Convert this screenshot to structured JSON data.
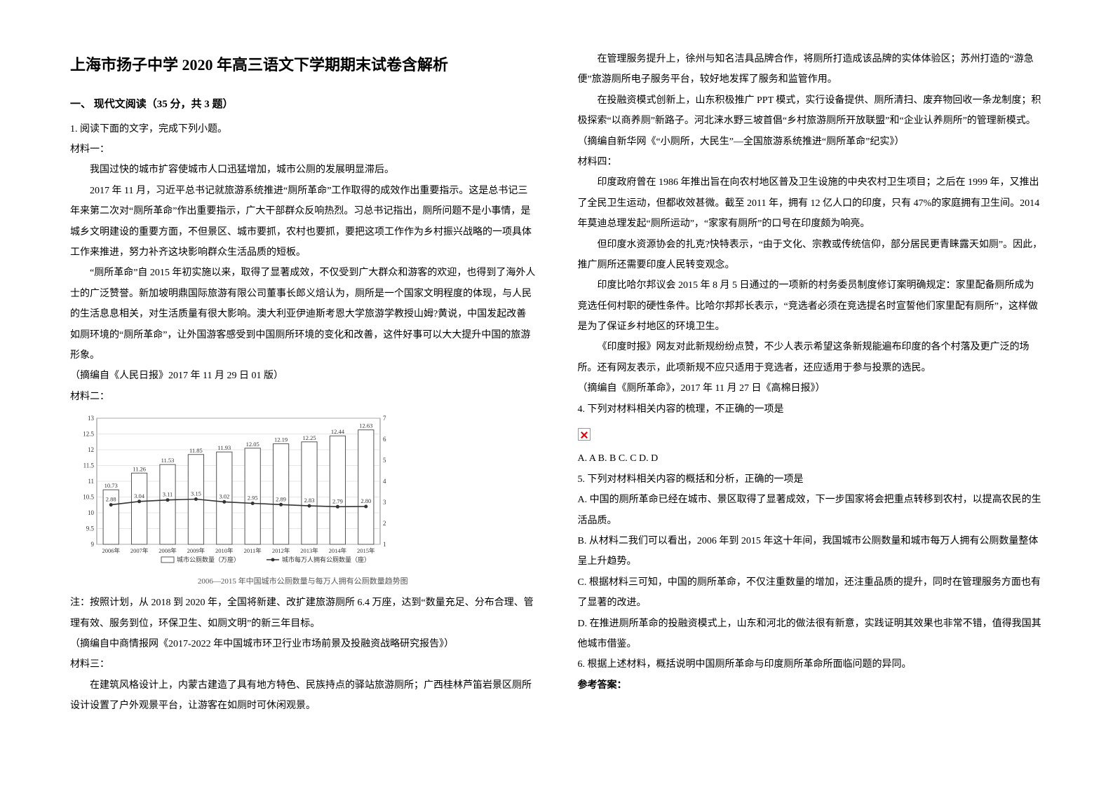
{
  "title": "上海市扬子中学 2020 年高三语文下学期期末试卷含解析",
  "section1": "一、 现代文阅读（35 分，共 3 题）",
  "q1_stem": "1. 阅读下面的文字，完成下列小题。",
  "mat1_label": "材料一：",
  "mat1_p1": "我国过快的城市扩容使城市人口迅猛增加，城市公厕的发展明显滞后。",
  "mat1_p2": "2017 年 11 月，习近平总书记就旅游系统推进“厕所革命”工作取得的成效作出重要指示。这是总书记三年来第二次对“厕所革命”作出重要指示，广大干部群众反响热烈。习总书记指出，厕所问题不是小事情，是城乡文明建设的重要方面，不但景区、城市要抓，农村也要抓，要把这项工作作为乡村振兴战略的一项具体工作来推进，努力补齐这块影响群众生活品质的短板。",
  "mat1_p3": "“厕所革命”自 2015 年初实施以来，取得了显著成效，不仅受到广大群众和游客的欢迎，也得到了海外人士的广泛赞誉。新加坡明鼎国际旅游有限公司董事长郎义焙认为，厕所是一个国家文明程度的体现，与人民的生活息息相关，对生活质量有很大影响。澳大利亚伊迪斯考恩大学旅游学教授山姆?黄说，中国发起改善如厕环境的“厕所革命”，让外国游客感受到中国厕所环境的变化和改善，这件好事可以大大提升中国的旅游形象。",
  "mat1_src": "（摘编自《人民日报》2017 年 11 月 29 日 01 版）",
  "mat2_label": "材料二：",
  "chart": {
    "type": "combo-bar-line",
    "years": [
      "2006年",
      "2007年",
      "2008年",
      "2009年",
      "2010年",
      "2011年",
      "2012年",
      "2013年",
      "2014年",
      "2015年"
    ],
    "bar_values": [
      10.73,
      11.26,
      11.53,
      11.85,
      11.93,
      12.05,
      12.19,
      12.25,
      12.44,
      12.63
    ],
    "line_values": [
      2.88,
      3.04,
      3.11,
      3.15,
      3.02,
      2.95,
      2.89,
      2.83,
      2.79,
      2.8
    ],
    "y_left": {
      "min": 9,
      "max": 13,
      "step": 0.5
    },
    "y_right": {
      "min": 1,
      "max": 7,
      "step": 1
    },
    "bar_label": "城市公厕数量（万座）",
    "line_label": "城市每万人拥有公厕数量（座）",
    "bar_color": "#ffffff",
    "bar_border": "#555555",
    "line_color": "#333333",
    "grid_color": "#cccccc",
    "font_size": 9,
    "caption": "2006—2015 年中国城市公厕数量与每万人拥有公厕数量趋势图"
  },
  "mat2_note": "注：按照计划，从 2018 到 2020 年，全国将新建、改扩建旅游厕所 6.4 万座，达到“数量充足、分布合理、管理有效、服务到位，环保卫生、如厕文明”的新三年目标。",
  "mat2_src": "（摘编自中商情报网《2017-2022 年中国城市环卫行业市场前景及投融资战略研究报告》）",
  "mat3_label": "材料三：",
  "mat3_p1": "在建筑风格设计上，内蒙古建造了具有地方特色、民族持点的驿站旅游厕所；广西桂林芦笛岩景区厕所设计设置了户外观景平台，让游客在如厕时可休闲观景。",
  "mat3_p2": "在管理服务提升上，徐州与知名洁具品牌合作，将厕所打造成该品牌的实体体验区；苏州打造的“游急便”旅游厕所电子服务平台，较好地发挥了服务和监管作用。",
  "mat3_p3": "在投融资模式创新上，山东积极推广 PPT 模式，实行设备提供、厕所清扫、废弃物回收一条龙制度；积极探索“以商养厕”新路子。河北涞水野三坡首倡“乡村旅游厕所开放联盟”和“企业认养厕所”的管理新模式。",
  "mat3_src": "（摘编自新华网《“小厕所，大民生”—全国旅游系统推进“厕所革命”纪实》）",
  "mat4_label": "材料四：",
  "mat4_p1": "印度政府曾在 1986 年推出旨在向农村地区普及卫生设施的中央农村卫生项目；之后在 1999 年，又推出了全民卫生运动，但都收效甚微。截至 2011 年，拥有 12 亿人口的印度，只有 47%的家庭拥有卫生间。2014 年莫迪总理发起“厕所运动”，“家家有厕所”的口号在印度颇为响亮。",
  "mat4_p2": "但印度水资源协会的扎克?快特表示，“由于文化、宗教或传统信仰，部分居民更青睐露天如厕”。因此，推广厕所还需要印度人民转变观念。",
  "mat4_p3": "印度比哈尔邦议会 2015 年 8 月 5 日通过的一项新的村务委员制度修订案明确规定：家里配备厕所成为竞选任何村职的硬性条件。比哈尔邦邦长表示，“竞选者必须在竞选提名时宣誓他们家里配有厕所”，这样做是为了保证乡村地区的环境卫生。",
  "mat4_p4": "《印度时报》网友对此新规纷纷点赞，不少人表示希望这条新规能遍布印度的各个村落及更广泛的场所。还有网友表示，此项新规不应只适用于竞选者，还应适用于参与投票的选民。",
  "mat4_src": "（摘编自《厕所革命》，2017 年 11 月 27 日《高棉日报》）",
  "q4_stem": "4. 下列对材料相关内容的梳理，不正确的一项是",
  "q4_opts": "A. A    B. B    C. C    D. D",
  "q5_stem": "5. 下列对材料相关内容的概括和分析，正确的一项是",
  "q5_A": "A. 中国的厕所革命已经在城市、景区取得了显著成效，下一步国家将会把重点转移到农村，以提高农民的生活品质。",
  "q5_B": "B. 从材料二我们可以看出，2006 年到 2015 年这十年间，我国城市公厕数量和城市每万人拥有公厕数量整体呈上升趋势。",
  "q5_C": "C. 根据材料三可知，中国的厕所革命，不仅注重数量的增加，还注重品质的提升，同时在管理服务方面也有了显著的改进。",
  "q5_D": "D. 在推进厕所革命的投融资模式上，山东和河北的做法很有新意，实践证明其效果也非常不错，值得我国其他城市借鉴。",
  "q6_stem": "6. 根据上述材料，概括说明中国厕所革命与印度厕所革命所面临问题的异同。",
  "answer_label": "参考答案："
}
